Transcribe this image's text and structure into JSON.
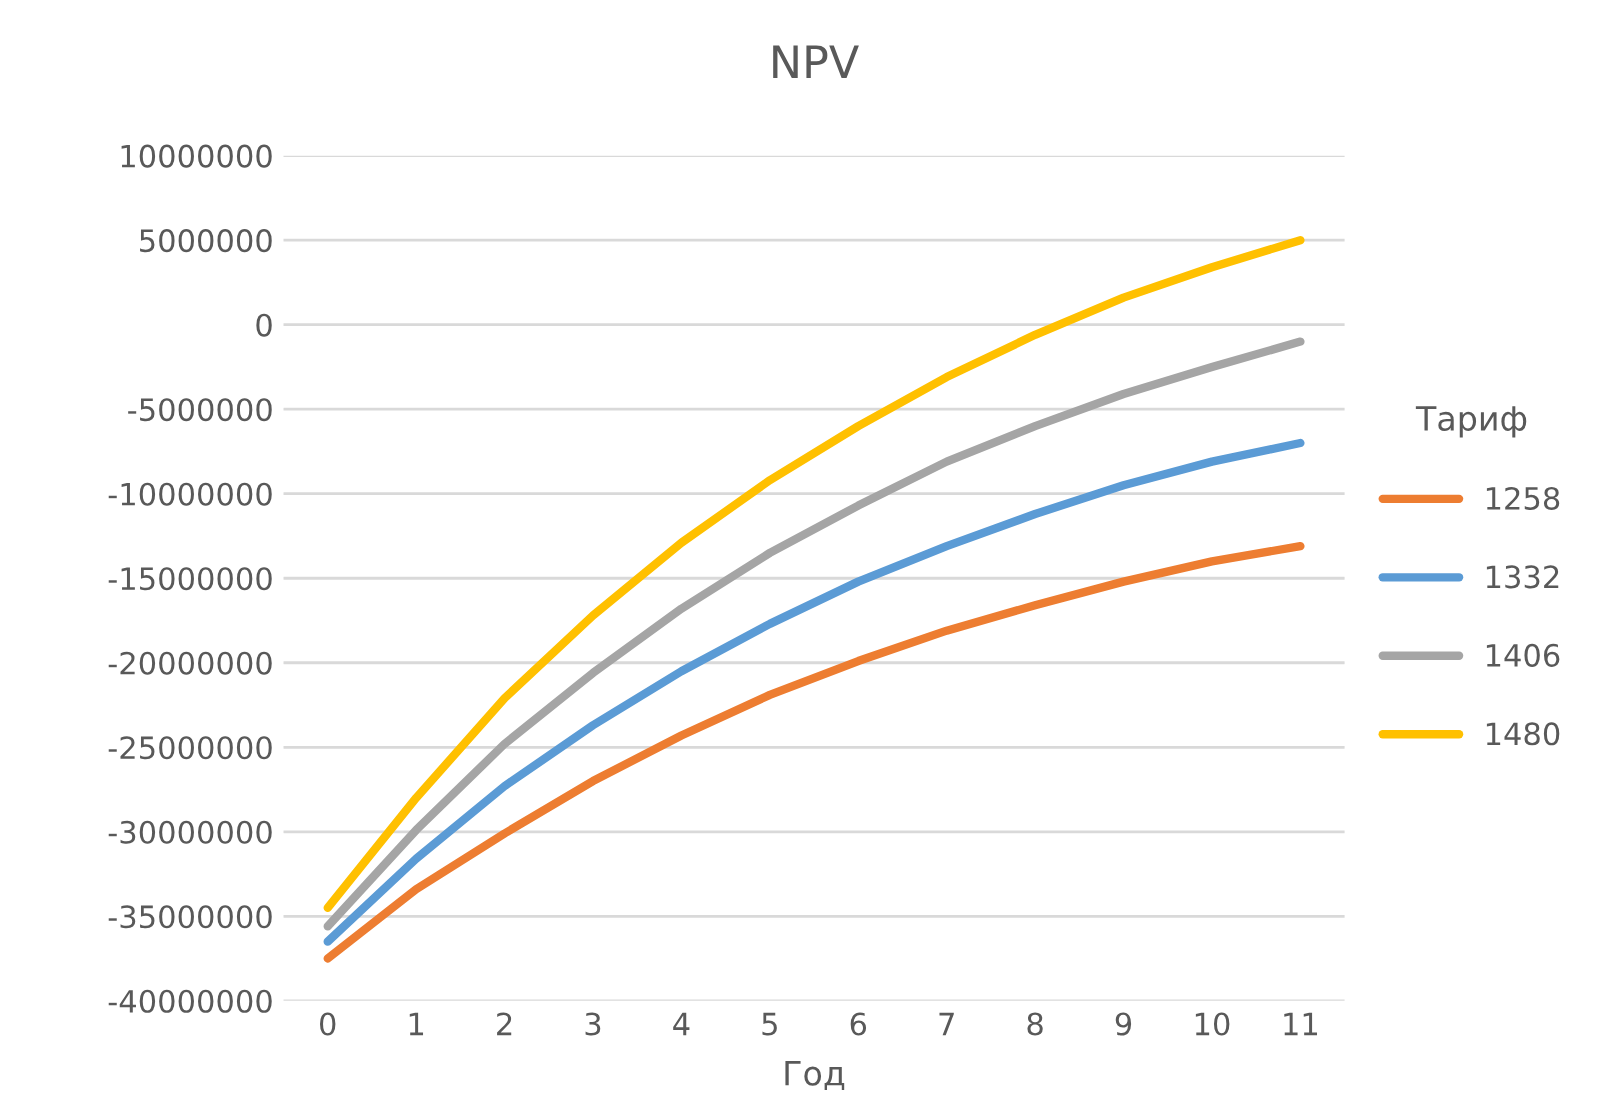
{
  "chart_data": {
    "type": "line",
    "title": "NPV",
    "xlabel": "Год",
    "legend_title": "Тариф",
    "categories": [
      "0",
      "1",
      "2",
      "3",
      "4",
      "5",
      "6",
      "7",
      "8",
      "9",
      "10",
      "11"
    ],
    "series": [
      {
        "name": "1258",
        "color": "#ed7d31",
        "values": [
          -37500000,
          -33400000,
          -30100000,
          -27000000,
          -24300000,
          -21900000,
          -19900000,
          -18100000,
          -16600000,
          -15200000,
          -14000000,
          -13100000
        ]
      },
      {
        "name": "1332",
        "color": "#5b9bd5",
        "values": [
          -36500000,
          -31600000,
          -27300000,
          -23700000,
          -20500000,
          -17700000,
          -15200000,
          -13100000,
          -11200000,
          -9500000,
          -8100000,
          -7000000
        ]
      },
      {
        "name": "1406",
        "color": "#a5a5a5",
        "values": [
          -35600000,
          -29900000,
          -24800000,
          -20600000,
          -16800000,
          -13500000,
          -10700000,
          -8100000,
          -6000000,
          -4100000,
          -2500000,
          -1000000
        ]
      },
      {
        "name": "1480",
        "color": "#ffc000",
        "values": [
          -34500000,
          -28000000,
          -22100000,
          -17200000,
          -12900000,
          -9200000,
          -6000000,
          -3100000,
          -600000,
          1600000,
          3400000,
          5000000
        ]
      }
    ],
    "ylim": [
      -40000000,
      10000000
    ],
    "yticks": [
      -40000000,
      -35000000,
      -30000000,
      -25000000,
      -20000000,
      -15000000,
      -10000000,
      -5000000,
      0,
      5000000,
      10000000
    ],
    "grid": "y",
    "legend": "right",
    "marker": "none",
    "line_style": "solid"
  }
}
